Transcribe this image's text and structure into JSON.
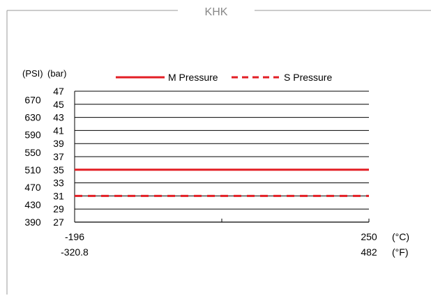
{
  "title": "KHK",
  "chart_data": {
    "type": "line",
    "title": "KHK",
    "y_units_left": "(PSI)",
    "y_units_right": "(bar)",
    "x_units_top": "(°C)",
    "x_units_bottom": "(°F)",
    "x": [
      -196,
      250
    ],
    "xlim": [
      -196,
      250
    ],
    "x_tick_labels_c": [
      "-196",
      "250"
    ],
    "x_tick_labels_f": [
      "-320.8",
      "482"
    ],
    "ylim_bar": [
      27,
      47
    ],
    "y_ticks_bar": [
      "27",
      "29",
      "31",
      "33",
      "35",
      "37",
      "39",
      "41",
      "43",
      "45",
      "47"
    ],
    "y_ticks_psi": [
      "390",
      "430",
      "470",
      "510",
      "550",
      "590",
      "630",
      "670"
    ],
    "y_ticks_psi_values_bar": [
      27,
      29.66,
      32.33,
      35,
      37.66,
      40.33,
      42.99,
      45.66
    ],
    "series": [
      {
        "name": "M Pressure",
        "style": "solid",
        "color": "#e31e24",
        "values": [
          35,
          35
        ]
      },
      {
        "name": "S Pressure",
        "style": "dashed",
        "color": "#e31e24",
        "values": [
          31,
          31
        ]
      }
    ],
    "legend_position": "top",
    "grid": true
  }
}
